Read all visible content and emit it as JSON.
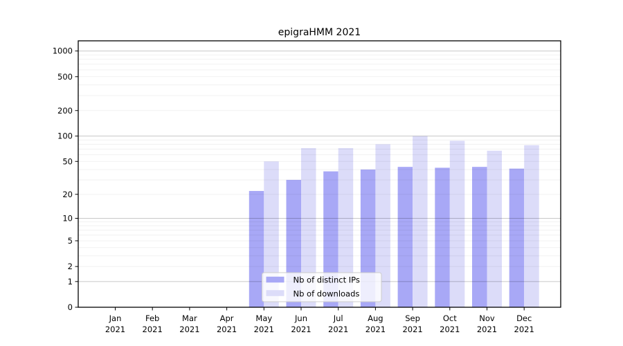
{
  "chart_data": {
    "type": "bar",
    "title": "epigraHMM 2021",
    "categories": [
      "Jan",
      "Feb",
      "Mar",
      "Apr",
      "May",
      "Jun",
      "Jul",
      "Aug",
      "Sep",
      "Oct",
      "Nov",
      "Dec"
    ],
    "category_year": "2021",
    "series": [
      {
        "name": "Nb of distinct IPs",
        "color": "#a8a8f6",
        "values": [
          0,
          0,
          0,
          0,
          22,
          30,
          38,
          40,
          43,
          42,
          43,
          41
        ]
      },
      {
        "name": "Nb of downloads",
        "color": "#dcdcf9",
        "values": [
          0,
          0,
          0,
          0,
          50,
          72,
          72,
          80,
          100,
          88,
          67,
          78
        ]
      }
    ],
    "y_scale": "log1p",
    "y_ticks": [
      0,
      1,
      2,
      5,
      10,
      20,
      50,
      100,
      200,
      500,
      1000
    ],
    "ylim": [
      0,
      1300
    ],
    "xlabel": "",
    "ylabel": "",
    "grid": "horizontal, minor lines at 2-9 of each decade, major at powers of 10",
    "legend": {
      "position": "inside-bottom-center",
      "labels": [
        "Nb of distinct IPs",
        "Nb of downloads"
      ]
    }
  },
  "colors": {
    "background": "#ffffff",
    "axis": "#000000",
    "grid_major": "rgba(0,0,0,0.22)",
    "grid_minor": "rgba(0,0,0,0.055)",
    "legend_border": "#cccccc",
    "legend_background": "rgba(255,255,255,0.8)"
  }
}
